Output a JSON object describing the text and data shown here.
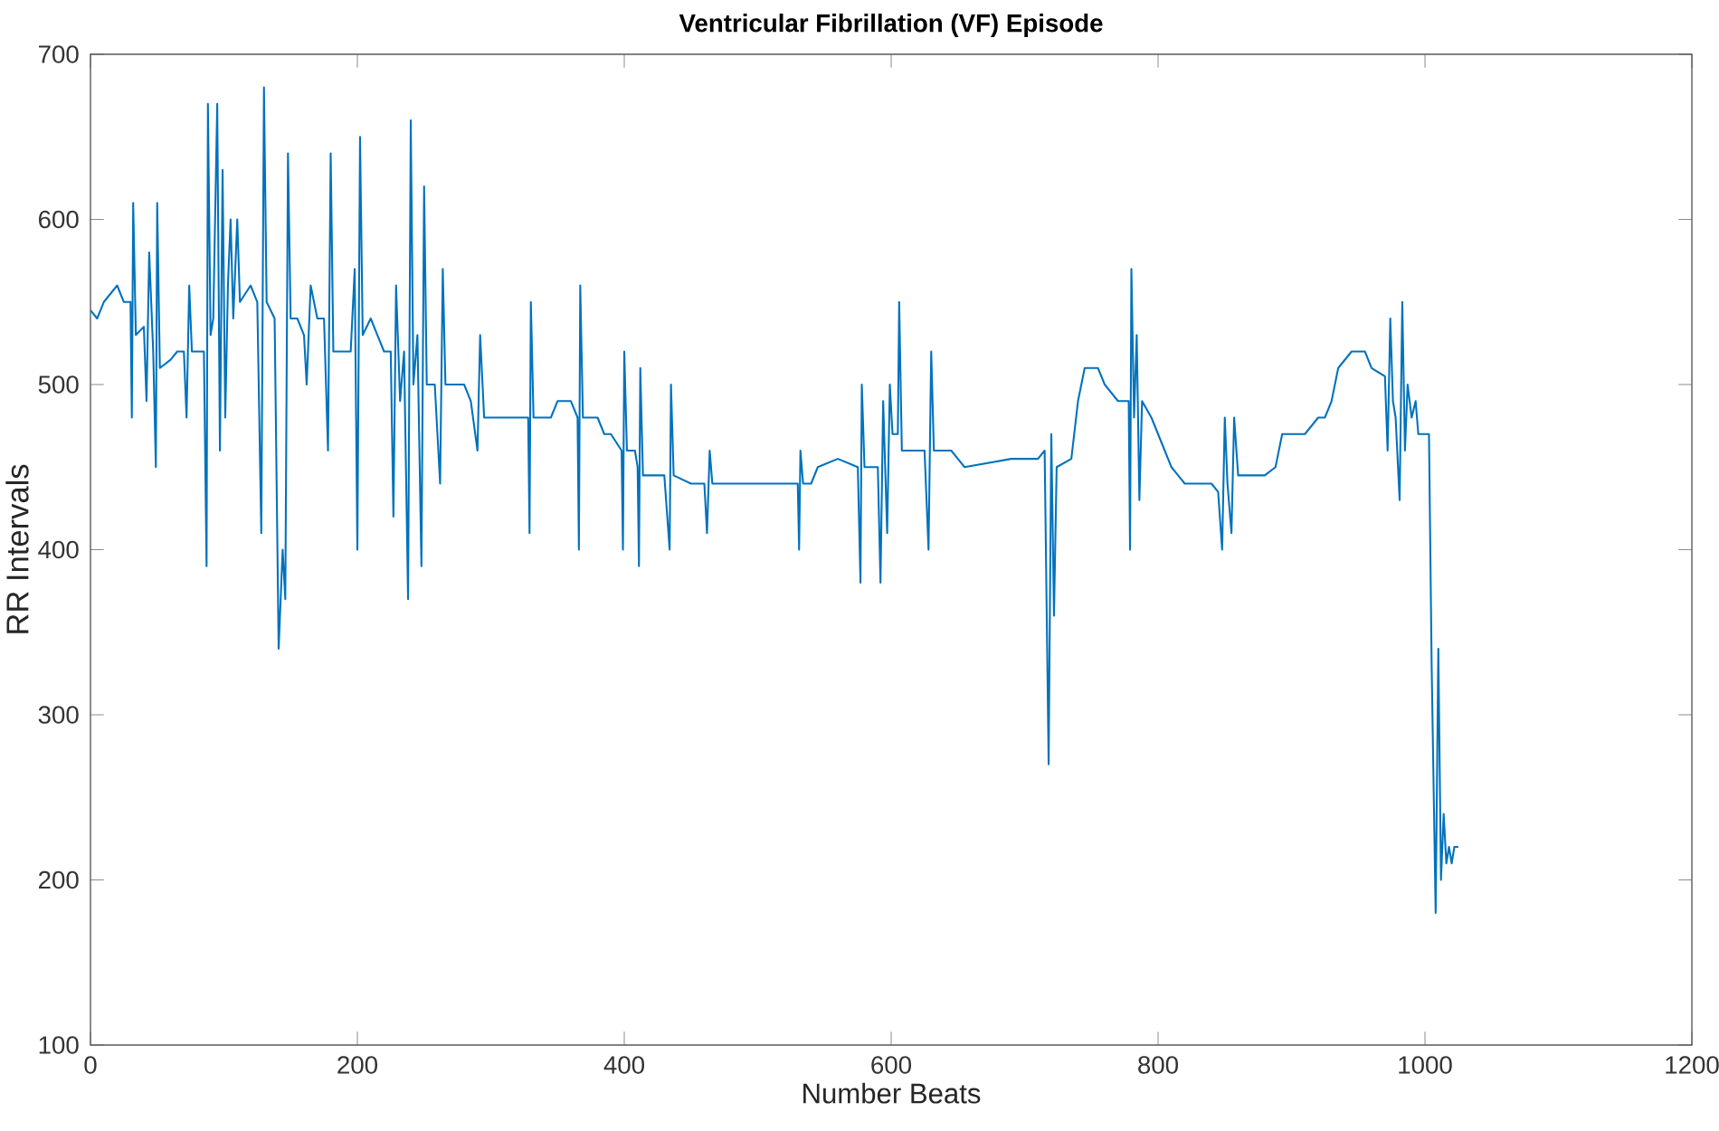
{
  "chart_data": {
    "type": "line",
    "title": "Ventricular Fibrillation (VF) Episode",
    "xlabel": "Number Beats",
    "ylabel": "RR Intervals",
    "xlim": [
      0,
      1200
    ],
    "xticks": [
      0,
      200,
      400,
      600,
      800,
      1000,
      1200
    ],
    "ylim": [
      100,
      700
    ],
    "yticks": [
      100,
      200,
      300,
      400,
      500,
      600,
      700
    ],
    "grid": false,
    "series": [
      {
        "color": "#0072bd",
        "x": [
          0,
          5,
          10,
          15,
          20,
          25,
          30,
          31,
          32,
          34,
          40,
          42,
          44,
          47,
          49,
          50,
          52,
          60,
          65,
          70,
          72,
          74,
          76,
          85,
          87,
          88,
          90,
          92,
          95,
          97,
          99,
          101,
          103,
          105,
          107,
          110,
          112,
          120,
          125,
          128,
          130,
          132,
          138,
          141,
          144,
          146,
          148,
          150,
          155,
          160,
          162,
          165,
          170,
          175,
          178,
          180,
          182,
          195,
          198,
          200,
          202,
          204,
          210,
          215,
          220,
          225,
          227,
          229,
          232,
          235,
          238,
          240,
          242,
          245,
          248,
          250,
          252,
          258,
          262,
          264,
          266,
          280,
          285,
          290,
          292,
          295,
          320,
          328,
          329,
          330,
          332,
          345,
          350,
          360,
          365,
          366,
          367,
          369,
          380,
          385,
          390,
          398,
          399,
          400,
          402,
          408,
          410,
          411,
          412,
          414,
          430,
          434,
          435,
          437,
          450,
          460,
          462,
          464,
          466,
          530,
          531,
          532,
          534,
          540,
          545,
          560,
          575,
          577,
          578,
          580,
          590,
          592,
          594,
          597,
          599,
          601,
          605,
          606,
          608,
          625,
          628,
          630,
          632,
          645,
          650,
          655,
          690,
          710,
          715,
          718,
          720,
          722,
          724,
          735,
          740,
          745,
          755,
          760,
          770,
          778,
          779,
          780,
          782,
          784,
          786,
          788,
          795,
          800,
          805,
          810,
          815,
          820,
          840,
          845,
          848,
          850,
          852,
          855,
          857,
          860,
          880,
          888,
          893,
          910,
          920,
          925,
          930,
          935,
          945,
          955,
          960,
          970,
          972,
          974,
          976,
          978,
          981,
          983,
          985,
          987,
          990,
          993,
          995,
          1000,
          1003,
          1005,
          1008,
          1010,
          1012,
          1014,
          1016,
          1018,
          1020,
          1022,
          1025
        ],
        "values": [
          545,
          540,
          550,
          555,
          560,
          550,
          550,
          480,
          610,
          530,
          535,
          490,
          580,
          520,
          450,
          610,
          510,
          515,
          520,
          520,
          480,
          560,
          520,
          520,
          390,
          670,
          530,
          540,
          670,
          460,
          630,
          480,
          560,
          600,
          540,
          600,
          550,
          560,
          550,
          410,
          680,
          550,
          540,
          340,
          400,
          370,
          640,
          540,
          540,
          530,
          500,
          560,
          540,
          540,
          460,
          640,
          520,
          520,
          570,
          400,
          650,
          530,
          540,
          530,
          520,
          520,
          420,
          560,
          490,
          520,
          370,
          660,
          500,
          530,
          390,
          620,
          500,
          500,
          440,
          570,
          500,
          500,
          490,
          460,
          530,
          480,
          480,
          480,
          410,
          550,
          480,
          480,
          490,
          490,
          480,
          400,
          560,
          480,
          480,
          470,
          470,
          460,
          400,
          520,
          460,
          460,
          450,
          390,
          510,
          445,
          445,
          400,
          500,
          445,
          440,
          440,
          410,
          460,
          440,
          440,
          400,
          460,
          440,
          440,
          450,
          455,
          450,
          380,
          500,
          450,
          450,
          380,
          490,
          410,
          500,
          470,
          470,
          550,
          460,
          460,
          400,
          520,
          460,
          460,
          455,
          450,
          455,
          455,
          460,
          270,
          470,
          360,
          450,
          455,
          490,
          510,
          510,
          500,
          490,
          490,
          400,
          570,
          480,
          530,
          430,
          490,
          480,
          470,
          460,
          450,
          445,
          440,
          440,
          435,
          400,
          480,
          440,
          410,
          480,
          445,
          445,
          450,
          470,
          470,
          480,
          480,
          490,
          510,
          520,
          520,
          510,
          505,
          460,
          540,
          490,
          480,
          430,
          550,
          460,
          500,
          480,
          490,
          470,
          470,
          470,
          330,
          180,
          340,
          200,
          240,
          210,
          220,
          210,
          220,
          220
        ]
      }
    ]
  }
}
